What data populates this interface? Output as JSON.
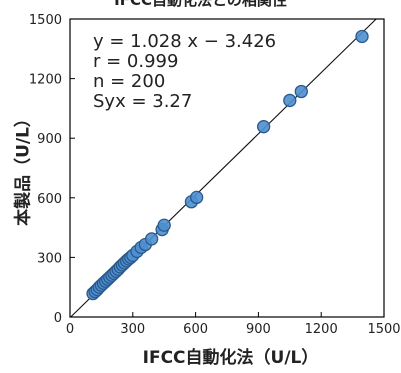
{
  "chart_data": {
    "type": "scatter",
    "title": "IFCC自動化法との相関性",
    "xlabel": "IFCC自動化法（U/L）",
    "ylabel": "本製品（U/L）",
    "xlim": [
      0,
      1500
    ],
    "ylim": [
      0,
      1500
    ],
    "xticks": [
      0,
      300,
      600,
      900,
      1200,
      1500
    ],
    "yticks": [
      0,
      300,
      600,
      900,
      1200,
      1500
    ],
    "grid": false,
    "annotations": [
      "y = 1.028 x − 3.426",
      "r = 0.999",
      "n = 200",
      "Syx = 3.27"
    ],
    "regression": {
      "slope": 1.028,
      "intercept": -3.426
    },
    "marker_color": "#4f8fd0",
    "marker_edge": "#2a5a8c",
    "points": {
      "x": [
        110,
        120,
        130,
        140,
        150,
        160,
        170,
        180,
        190,
        200,
        210,
        220,
        230,
        240,
        250,
        260,
        270,
        280,
        290,
        300,
        320,
        340,
        360,
        390,
        440,
        450,
        580,
        605,
        925,
        1050,
        1105,
        1395
      ],
      "y": [
        118,
        128,
        138,
        150,
        160,
        170,
        180,
        190,
        200,
        210,
        220,
        230,
        240,
        252,
        262,
        272,
        282,
        292,
        300,
        310,
        330,
        350,
        365,
        393,
        440,
        462,
        580,
        602,
        958,
        1090,
        1135,
        1412
      ]
    }
  }
}
